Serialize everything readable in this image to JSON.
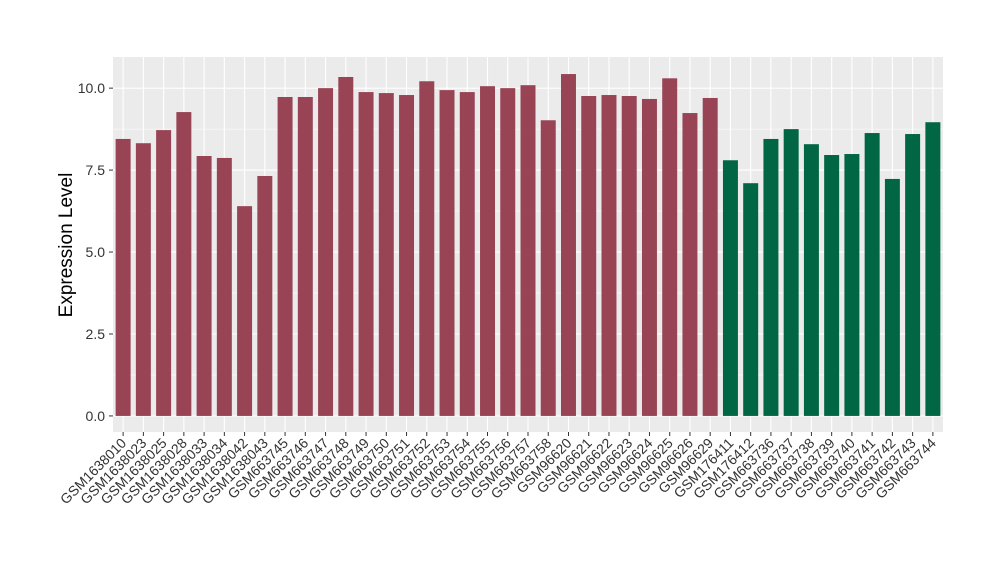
{
  "chart_data": {
    "type": "bar",
    "y_label": "Expression Level",
    "categories": [
      "GSM1638010",
      "GSM1638023",
      "GSM1638025",
      "GSM1638028",
      "GSM1638033",
      "GSM1638034",
      "GSM1638042",
      "GSM1638043",
      "GSM663745",
      "GSM663746",
      "GSM663747",
      "GSM663748",
      "GSM663749",
      "GSM663750",
      "GSM663751",
      "GSM663752",
      "GSM663753",
      "GSM663754",
      "GSM663755",
      "GSM663756",
      "GSM663757",
      "GSM663758",
      "GSM96620",
      "GSM96621",
      "GSM96622",
      "GSM96623",
      "GSM96624",
      "GSM96625",
      "GSM96626",
      "GSM96629",
      "GSM176411",
      "GSM176412",
      "GSM663736",
      "GSM663737",
      "GSM663738",
      "GSM663739",
      "GSM663740",
      "GSM663741",
      "GSM663742",
      "GSM663743",
      "GSM663744"
    ],
    "values": [
      8.45,
      8.32,
      8.72,
      9.27,
      7.93,
      7.87,
      6.4,
      7.32,
      9.73,
      9.73,
      10.0,
      10.34,
      9.88,
      9.85,
      9.79,
      10.21,
      9.94,
      9.88,
      10.06,
      10.0,
      10.09,
      9.02,
      10.43,
      9.76,
      9.79,
      9.76,
      9.67,
      10.3,
      9.24,
      9.7,
      7.8,
      7.1,
      8.45,
      8.75,
      8.29,
      7.96,
      7.99,
      8.63,
      7.23,
      8.6,
      8.96
    ],
    "colors": [
      "#994455",
      "#994455",
      "#994455",
      "#994455",
      "#994455",
      "#994455",
      "#994455",
      "#994455",
      "#994455",
      "#994455",
      "#994455",
      "#994455",
      "#994455",
      "#994455",
      "#994455",
      "#994455",
      "#994455",
      "#994455",
      "#994455",
      "#994455",
      "#994455",
      "#994455",
      "#994455",
      "#994455",
      "#994455",
      "#994455",
      "#994455",
      "#994455",
      "#994455",
      "#994455",
      "#006644",
      "#006644",
      "#006644",
      "#006644",
      "#006644",
      "#006644",
      "#006644",
      "#006644",
      "#006644",
      "#006644",
      "#006644"
    ],
    "ylim": [
      -0.49,
      10.95
    ],
    "yticks": [
      {
        "value": 0,
        "label": "0.0"
      },
      {
        "value": 2.5,
        "label": "2.5"
      },
      {
        "value": 5,
        "label": "5.0"
      },
      {
        "value": 7.5,
        "label": "7.5"
      },
      {
        "value": 10,
        "label": "10.0"
      }
    ],
    "grid": true
  }
}
